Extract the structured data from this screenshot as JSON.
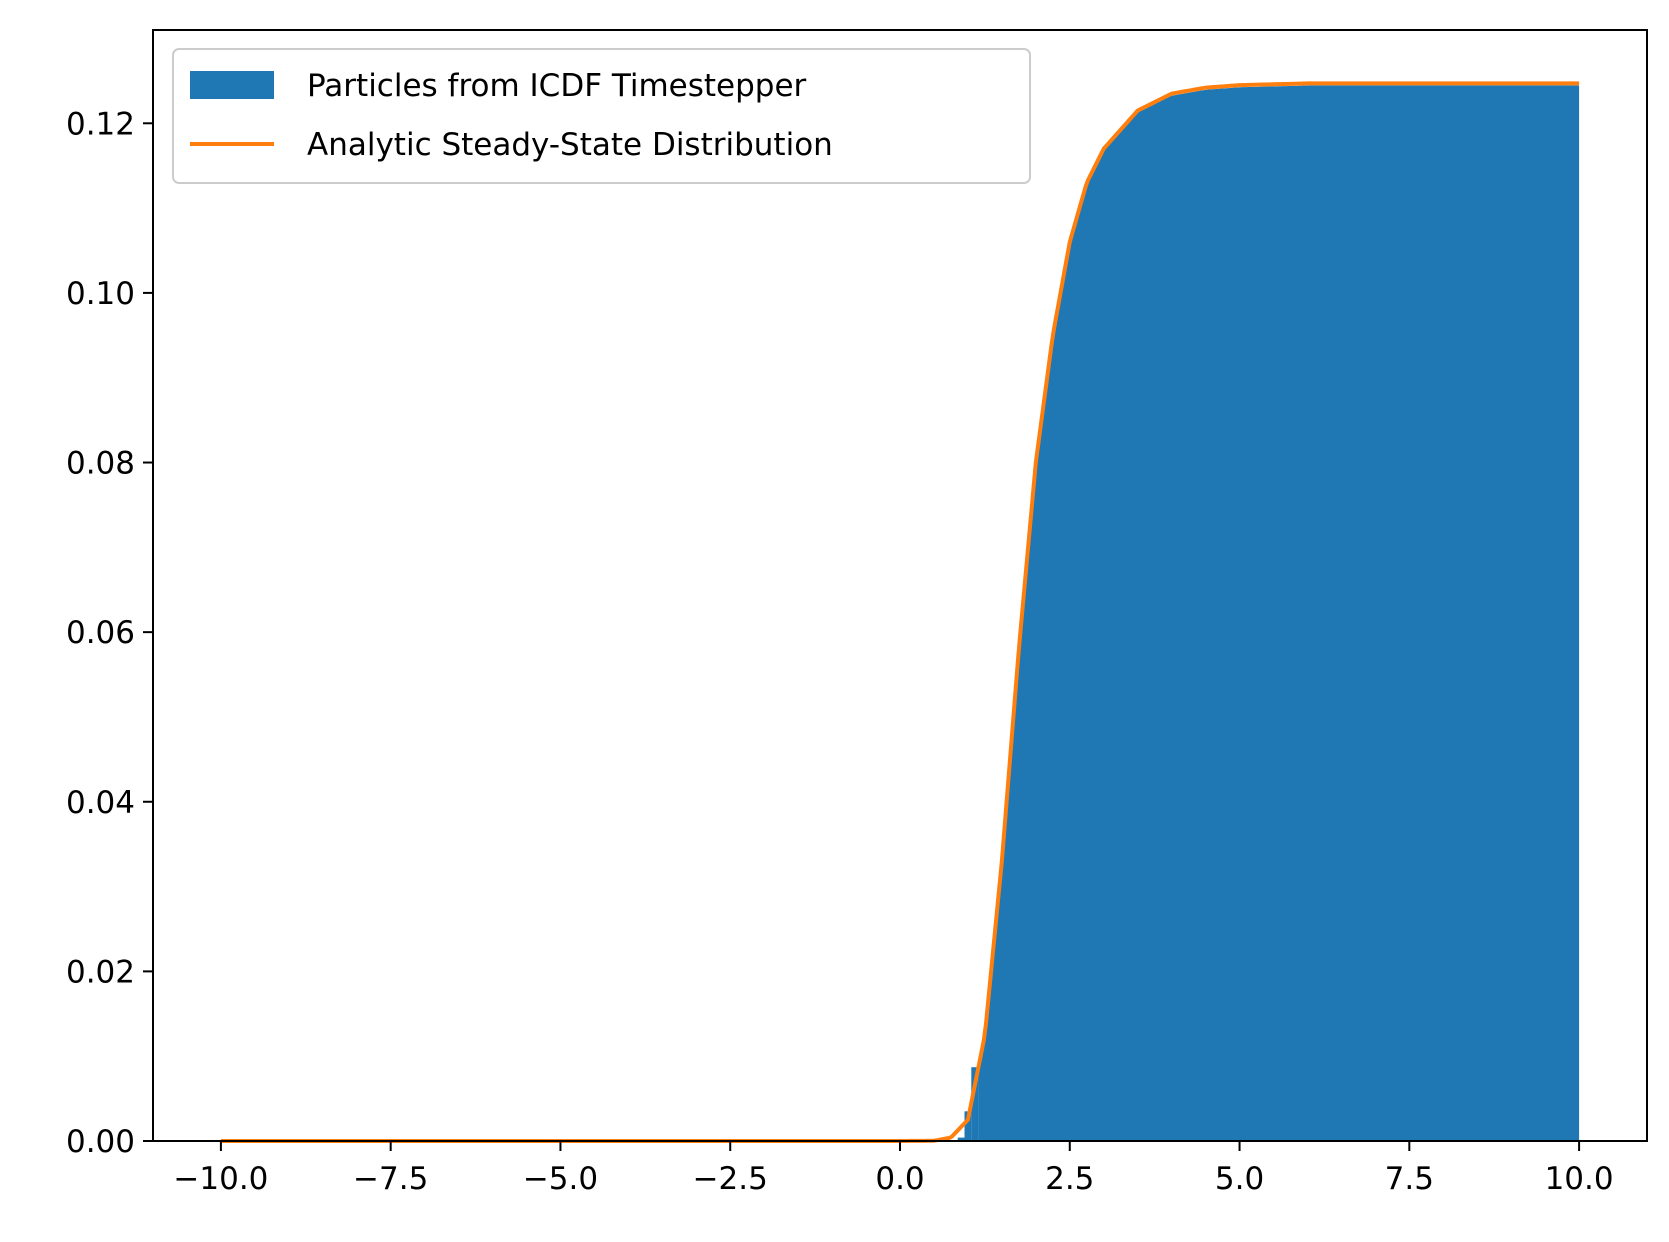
{
  "chart_data": {
    "type": "histogram+line",
    "title": "",
    "xlabel": "",
    "ylabel": "",
    "xlim": [
      -11.0,
      11.0
    ],
    "ylim": [
      0.0,
      0.131
    ],
    "grid": false,
    "legend_position": "top-left",
    "x_ticks": [
      -10.0,
      -7.5,
      -5.0,
      -2.5,
      0.0,
      2.5,
      5.0,
      7.5,
      10.0
    ],
    "x_tick_labels": [
      "−10.0",
      "−7.5",
      "−5.0",
      "−2.5",
      "0.0",
      "2.5",
      "5.0",
      "7.5",
      "10.0"
    ],
    "y_ticks": [
      0.0,
      0.02,
      0.04,
      0.06,
      0.08,
      0.1,
      0.12
    ],
    "y_tick_labels": [
      "0.00",
      "0.02",
      "0.04",
      "0.06",
      "0.08",
      "0.10",
      "0.12"
    ],
    "series": [
      {
        "name": "Particles from ICDF Timestepper",
        "kind": "histogram",
        "color": "#1f77b4",
        "bins": [
          {
            "x0": 0.85,
            "x1": 0.95,
            "y": 0.0004
          },
          {
            "x0": 0.95,
            "x1": 1.05,
            "y": 0.0035
          },
          {
            "x0": 1.05,
            "x1": 1.15,
            "y": 0.0087
          }
        ],
        "x_end": 10.0
      },
      {
        "name": "Analytic Steady-State Distribution",
        "kind": "line",
        "color": "#ff7f0e",
        "x_range": [
          -10.0,
          10.0
        ],
        "points": [
          [
            -10.0,
            0.0
          ],
          [
            0.0,
            0.0
          ],
          [
            0.5,
            3e-05
          ],
          [
            0.75,
            0.0004
          ],
          [
            1.0,
            0.0025
          ],
          [
            1.25,
            0.0125
          ],
          [
            1.5,
            0.033
          ],
          [
            1.75,
            0.058
          ],
          [
            2.0,
            0.08
          ],
          [
            2.25,
            0.095
          ],
          [
            2.5,
            0.106
          ],
          [
            2.75,
            0.113
          ],
          [
            3.0,
            0.117
          ],
          [
            3.5,
            0.1215
          ],
          [
            4.0,
            0.1235
          ],
          [
            4.5,
            0.1242
          ],
          [
            5.0,
            0.1245
          ],
          [
            6.0,
            0.1247
          ],
          [
            10.0,
            0.1247
          ]
        ]
      }
    ]
  }
}
